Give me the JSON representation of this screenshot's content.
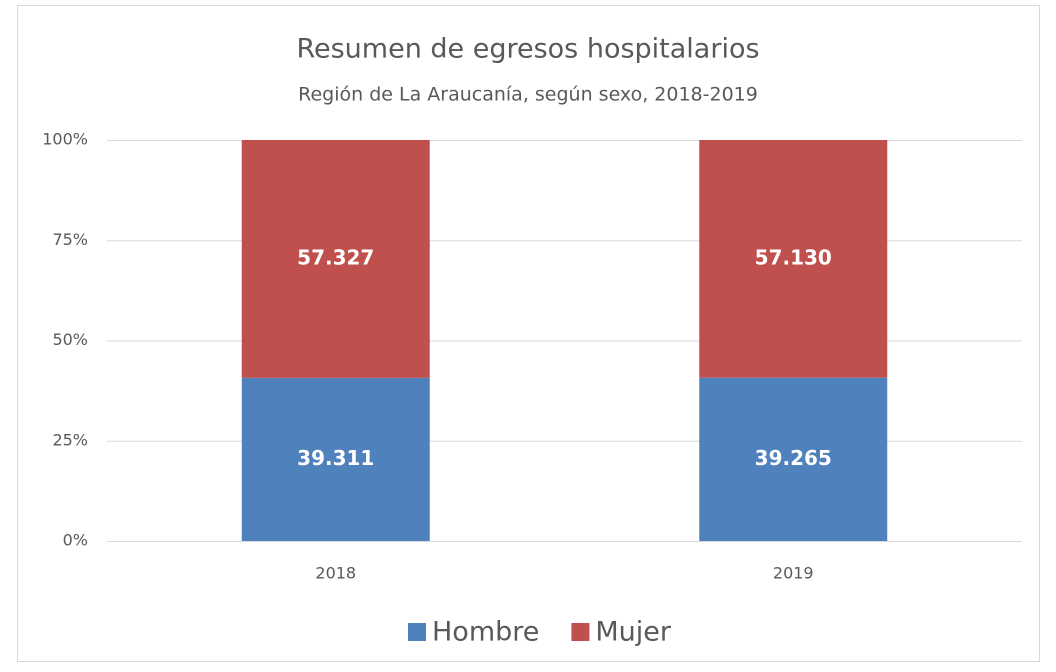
{
  "chart_data": {
    "type": "bar",
    "stacked": "percent",
    "title": "Resumen de egresos hospitalarios",
    "subtitle": "Región de La Araucanía, según sexo, 2018-2019",
    "categories": [
      "2018",
      "2019"
    ],
    "series": [
      {
        "name": "Hombre",
        "color": "#4f81bd",
        "values": [
          39311,
          39265
        ],
        "value_labels": [
          "39.311",
          "39.265"
        ]
      },
      {
        "name": "Mujer",
        "color": "#c0504d",
        "values": [
          57327,
          57130
        ],
        "value_labels": [
          "57.327",
          "57.130"
        ]
      }
    ],
    "ylim": [
      0,
      100
    ],
    "yticks": [
      {
        "value": 0,
        "label": "0%"
      },
      {
        "value": 25,
        "label": "25%"
      },
      {
        "value": 50,
        "label": "50%"
      },
      {
        "value": 75,
        "label": "75%"
      },
      {
        "value": 100,
        "label": "100%"
      }
    ],
    "grid": true,
    "legend": "bottom"
  }
}
